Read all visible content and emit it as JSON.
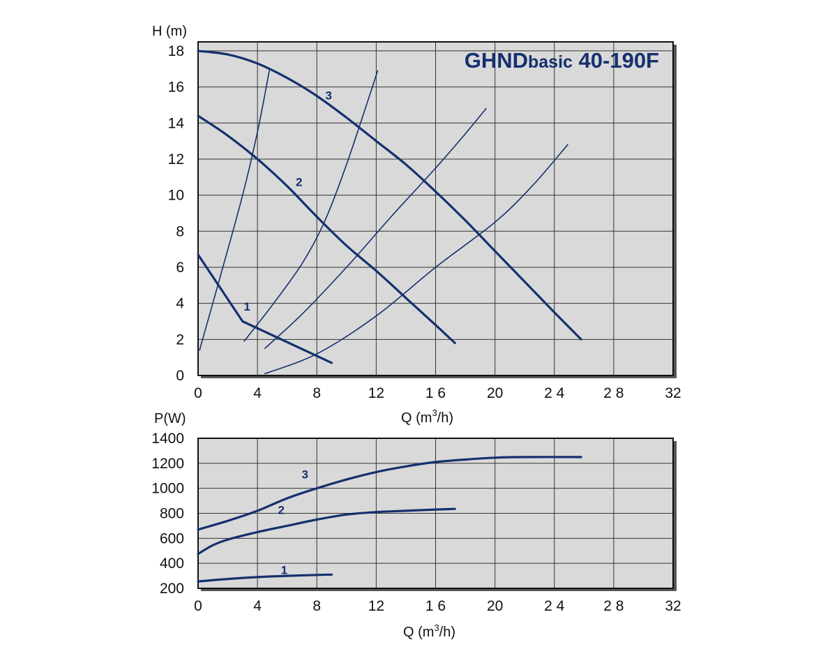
{
  "colors": {
    "plot_bg": "#d9d9d9",
    "curve": "#14306e",
    "grid": "#333333",
    "frame": "#111111"
  },
  "chart_data": [
    {
      "type": "line",
      "title_main": "GHND",
      "title_small": "basic",
      "title_model": " 40-190F",
      "ylabel": "H (m)",
      "xlabel": "Q (m",
      "xlabel_sup": "3",
      "xlabel_tail": "/h)",
      "xlim": [
        0,
        32
      ],
      "ylim": [
        0,
        18.5
      ],
      "x_ticks": [
        "0",
        "4",
        "8",
        "12",
        "1 6",
        "20",
        "2 4",
        "2 8",
        "32"
      ],
      "y_ticks": [
        "0",
        "2",
        "4",
        "6",
        "8",
        "10",
        "12",
        "14",
        "16",
        "18"
      ],
      "grid": true,
      "series": [
        {
          "name": "1",
          "bold": true,
          "label_at": [
            3.3,
            3.6
          ],
          "points": [
            [
              0,
              6.7
            ],
            [
              3,
              3.0
            ],
            [
              9,
              0.7
            ]
          ]
        },
        {
          "name": "2",
          "bold": true,
          "label_at": [
            6.8,
            10.5
          ],
          "points": [
            [
              0,
              14.4
            ],
            [
              2,
              13.3
            ],
            [
              4,
              12.0
            ],
            [
              6,
              10.5
            ],
            [
              8,
              8.8
            ],
            [
              10,
              7.2
            ],
            [
              12,
              5.8
            ],
            [
              14,
              4.3
            ],
            [
              16,
              2.8
            ],
            [
              17.3,
              1.8
            ]
          ]
        },
        {
          "name": "3",
          "bold": true,
          "label_at": [
            8.8,
            15.3
          ],
          "points": [
            [
              0,
              18.0
            ],
            [
              2,
              17.8
            ],
            [
              4,
              17.3
            ],
            [
              6,
              16.5
            ],
            [
              8,
              15.5
            ],
            [
              10,
              14.3
            ],
            [
              12,
              13.0
            ],
            [
              14,
              11.7
            ],
            [
              16,
              10.2
            ],
            [
              18,
              8.6
            ],
            [
              20,
              6.9
            ],
            [
              22,
              5.2
            ],
            [
              24,
              3.5
            ],
            [
              25.8,
              2.0
            ]
          ]
        },
        {
          "name": "",
          "bold": false,
          "points": [
            [
              0.1,
              1.4
            ],
            [
              1.5,
              5.5
            ],
            [
              3,
              10.0
            ],
            [
              4,
              13.5
            ],
            [
              4.8,
              16.9
            ]
          ]
        },
        {
          "name": "",
          "bold": false,
          "points": [
            [
              3.1,
              1.9
            ],
            [
              5,
              3.9
            ],
            [
              7,
              6.2
            ],
            [
              8.5,
              8.5
            ],
            [
              10,
              11.7
            ],
            [
              12.1,
              16.9
            ]
          ]
        },
        {
          "name": "",
          "bold": false,
          "points": [
            [
              4.5,
              1.5
            ],
            [
              7,
              3.4
            ],
            [
              10,
              6.0
            ],
            [
              13,
              8.8
            ],
            [
              16,
              11.5
            ],
            [
              18,
              13.4
            ],
            [
              19.4,
              14.8
            ]
          ]
        },
        {
          "name": "",
          "bold": false,
          "points": [
            [
              4.5,
              0.1
            ],
            [
              8,
              1.2
            ],
            [
              12,
              3.3
            ],
            [
              16,
              6.0
            ],
            [
              20,
              8.5
            ],
            [
              22.5,
              10.5
            ],
            [
              24.9,
              12.8
            ]
          ]
        }
      ]
    },
    {
      "type": "line",
      "ylabel": "P(W)",
      "xlabel": "Q (m",
      "xlabel_sup": "3",
      "xlabel_tail": "/h)",
      "xlim": [
        0,
        32
      ],
      "ylim": [
        200,
        1400
      ],
      "x_ticks": [
        "0",
        "4",
        "8",
        "12",
        "1 6",
        "20",
        "2 4",
        "2 8",
        "32"
      ],
      "y_ticks": [
        "200",
        "400",
        "600",
        "800",
        "1000",
        "1200",
        "1400"
      ],
      "grid": true,
      "series": [
        {
          "name": "1",
          "bold": true,
          "label_at": [
            5.8,
            315
          ],
          "points": [
            [
              0,
              255
            ],
            [
              2,
              275
            ],
            [
              4,
              290
            ],
            [
              6,
              300
            ],
            [
              8,
              307
            ],
            [
              9,
              310
            ]
          ]
        },
        {
          "name": "2",
          "bold": true,
          "label_at": [
            5.6,
            795
          ],
          "points": [
            [
              0,
              475
            ],
            [
              1,
              545
            ],
            [
              2,
              590
            ],
            [
              4,
              650
            ],
            [
              6,
              700
            ],
            [
              8,
              750
            ],
            [
              10,
              790
            ],
            [
              12,
              810
            ],
            [
              14,
              820
            ],
            [
              16,
              830
            ],
            [
              17.3,
              835
            ]
          ]
        },
        {
          "name": "3",
          "bold": true,
          "label_at": [
            7.2,
            1080
          ],
          "points": [
            [
              0,
              670
            ],
            [
              2,
              740
            ],
            [
              4,
              820
            ],
            [
              6,
              920
            ],
            [
              8,
              1000
            ],
            [
              10,
              1070
            ],
            [
              12,
              1130
            ],
            [
              14,
              1175
            ],
            [
              16,
              1210
            ],
            [
              18,
              1230
            ],
            [
              20,
              1245
            ],
            [
              22,
              1250
            ],
            [
              25.8,
              1250
            ]
          ]
        }
      ]
    }
  ]
}
